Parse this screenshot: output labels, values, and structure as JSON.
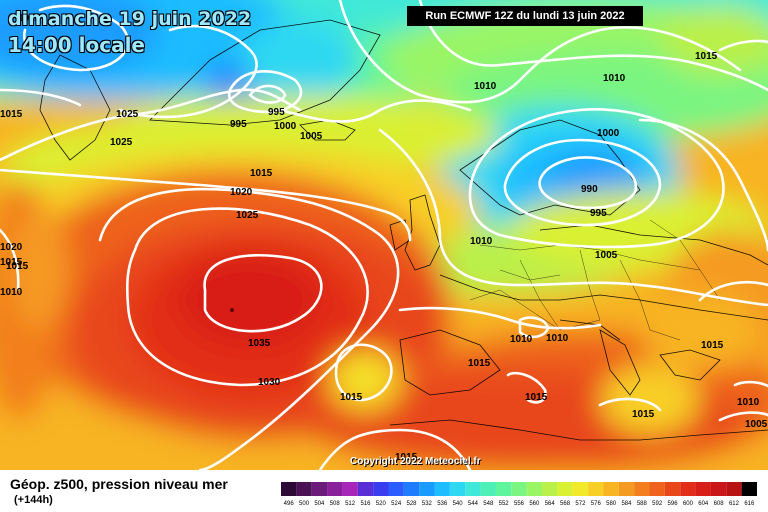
{
  "title": {
    "date": "dimanche 19 juin 2022",
    "time": "14:00 locale"
  },
  "run_label": "Run ECMWF 12Z du lundi 13 juin 2022",
  "copyright": "Copyright 2022 Meteociel.fr",
  "footer": {
    "product": "Géop. z500, pression niveau mer",
    "lead": "(+144h)"
  },
  "pressure_labels": [
    "1015",
    "1025",
    "1025",
    "1015",
    "995",
    "995",
    "1000",
    "1005",
    "1015",
    "1020",
    "1025",
    "1020",
    "1015",
    "1010",
    "1010",
    "1015",
    "1010",
    "1000",
    "990",
    "995",
    "1005",
    "1010",
    "1015",
    "1010",
    "1010",
    "1035",
    "1030",
    "1015",
    "1015",
    "1015",
    "1015",
    "1015",
    "1010",
    "1005",
    "1015"
  ],
  "scale": {
    "values": [
      "496",
      "500",
      "504",
      "508",
      "512",
      "516",
      "520",
      "524",
      "528",
      "532",
      "536",
      "540",
      "544",
      "548",
      "552",
      "556",
      "560",
      "564",
      "568",
      "572",
      "576",
      "580",
      "584",
      "588",
      "592",
      "596",
      "600",
      "604",
      "608",
      "612",
      "616"
    ],
    "colors": [
      "#2d0a36",
      "#4a1255",
      "#6a1a78",
      "#8a1f9c",
      "#a526b8",
      "#5a2ed6",
      "#3a3cef",
      "#2a5cff",
      "#1f7cff",
      "#1a9cff",
      "#1fbcff",
      "#2fd8f2",
      "#3fe8d8",
      "#4ff0b8",
      "#5ff59c",
      "#7af581",
      "#9af565",
      "#baf04a",
      "#daf032",
      "#f2e92a",
      "#f8cf26",
      "#f8b422",
      "#f59a20",
      "#f27e1e",
      "#ee621c",
      "#e8471a",
      "#e22e18",
      "#d81e18",
      "#c91618",
      "#b81212",
      "#000000"
    ]
  },
  "colors": {
    "isobar": "#ffffff",
    "title_text": "#9fe8ff"
  }
}
